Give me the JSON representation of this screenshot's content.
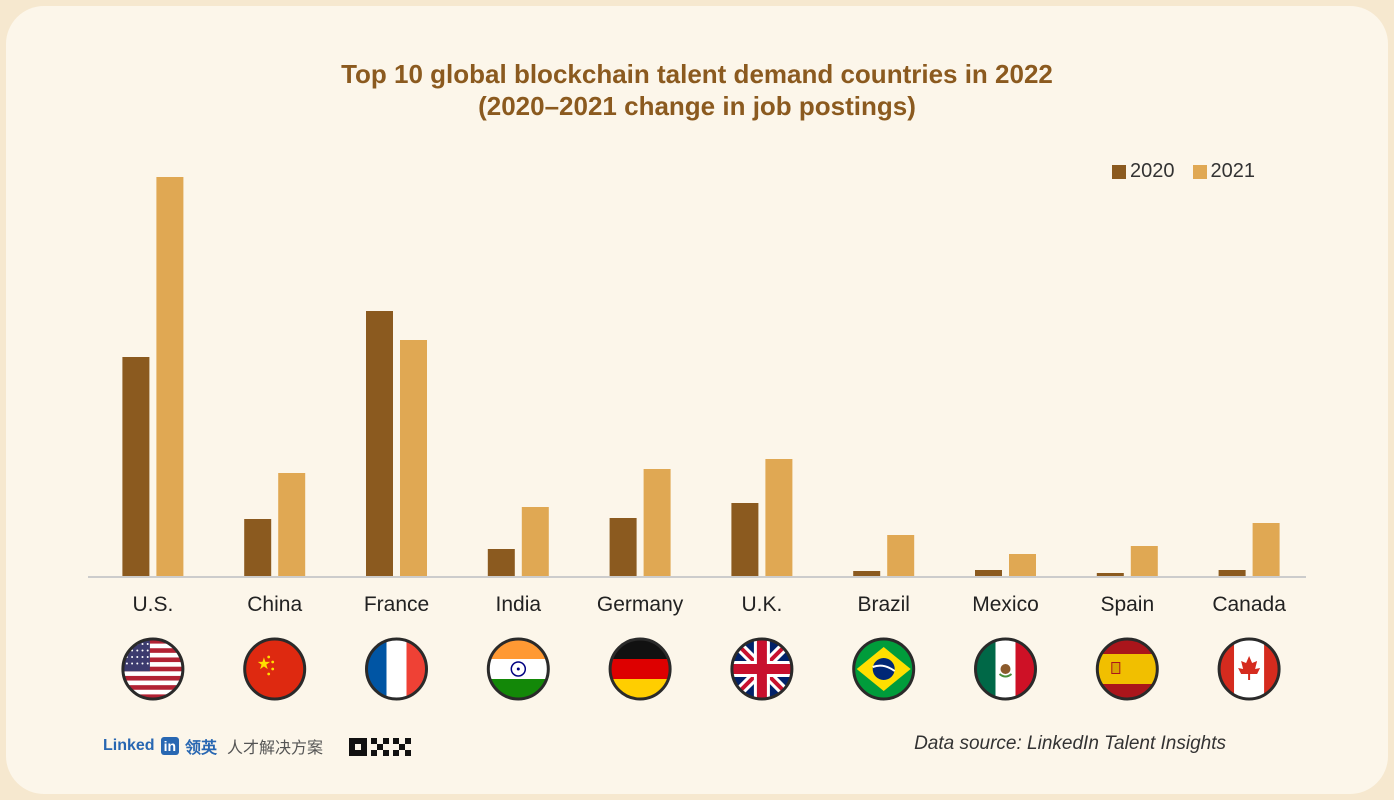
{
  "chart_data": {
    "type": "bar",
    "title": "Top 10 global blockchain talent demand countries in 2022",
    "subtitle": "(2020–2021 change in job postings)",
    "categories": [
      "U.S.",
      "China",
      "France",
      "India",
      "Germany",
      "U.K.",
      "Brazil",
      "Mexico",
      "Spain",
      "Canada"
    ],
    "series": [
      {
        "name": "2020",
        "color": "#8b5a1f",
        "values": [
          220,
          58,
          266,
          28,
          59,
          74,
          6,
          7,
          4,
          7
        ]
      },
      {
        "name": "2021",
        "color": "#e0a853",
        "values": [
          400,
          104,
          237,
          70,
          108,
          118,
          42,
          23,
          31,
          54
        ]
      }
    ],
    "ylim": [
      0,
      420
    ],
    "grid": false,
    "legend_position": "top-right",
    "xlabel": "",
    "ylabel": ""
  },
  "flags": [
    "us-flag-icon",
    "china-flag-icon",
    "france-flag-icon",
    "india-flag-icon",
    "germany-flag-icon",
    "uk-flag-icon",
    "brazil-flag-icon",
    "mexico-flag-icon",
    "spain-flag-icon",
    "canada-flag-icon"
  ],
  "footer": {
    "linkedin_text": "Linked",
    "linkedin_in": "in",
    "linkedin_cn": "领英",
    "linkedin_cn_sub": "人才解决方案",
    "okx_logo": "OKX",
    "source": "Data source: LinkedIn Talent Insights"
  }
}
